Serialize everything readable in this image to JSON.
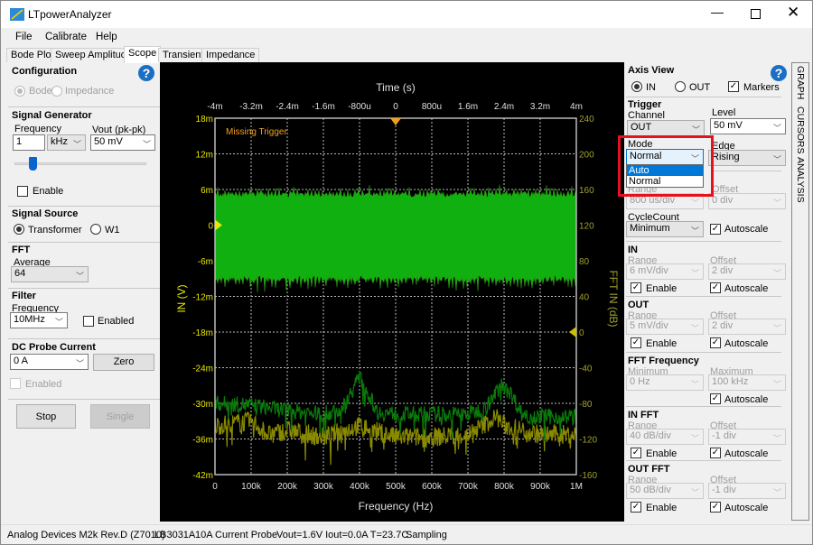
{
  "window": {
    "title": "LTpowerAnalyzer"
  },
  "menu": [
    "File",
    "Calibrate",
    "Help"
  ],
  "tabs": [
    "Bode Plot",
    "Sweep Amplitude",
    "Scope",
    "Transient",
    "Impedance"
  ],
  "left": {
    "configuration": {
      "title": "Configuration",
      "bode": "Bode",
      "impedance": "Impedance"
    },
    "signal_generator": {
      "title": "Signal Generator",
      "frequency_label": "Frequency",
      "frequency_value": "1",
      "unit": "kHz",
      "vout_label": "Vout (pk-pk)",
      "vout_value": "50 mV",
      "slider_fraction": 0.15,
      "enable": "Enable"
    },
    "signal_source": {
      "title": "Signal Source",
      "transformer": "Transformer",
      "w1": "W1"
    },
    "fft": {
      "title": "FFT",
      "average_label": "Average",
      "average_value": "64"
    },
    "filter": {
      "title": "Filter",
      "frequency_label": "Frequency",
      "frequency_value": "10MHz",
      "enabled": "Enabled"
    },
    "dc_probe": {
      "title": "DC Probe Current",
      "value": "0 A",
      "zero": "Zero",
      "enabled": "Enabled"
    },
    "stop": "Stop",
    "single": "Single"
  },
  "right": {
    "axis_view": {
      "title": "Axis View",
      "in": "IN",
      "out": "OUT",
      "markers": "Markers"
    },
    "trigger": {
      "title": "Trigger",
      "channel_label": "Channel",
      "channel_value": "OUT",
      "level_label": "Level",
      "level_value": "50 mV",
      "mode_label": "Mode",
      "mode_value": "Normal",
      "mode_options": [
        "Auto",
        "Normal"
      ],
      "edge_label": "Edge",
      "edge_value": "Rising"
    },
    "time": {
      "range_label": "Range",
      "range_value": "800 us/div",
      "offset_label": "Offset",
      "offset_value": "0 div",
      "cycle_label": "CycleCount",
      "cycle_value": "Minimum",
      "autoscale": "Autoscale"
    },
    "in": {
      "title": "IN",
      "range_label": "Range",
      "range_value": "6 mV/div",
      "offset_label": "Offset",
      "offset_value": "2 div",
      "enable": "Enable",
      "autoscale": "Autoscale"
    },
    "out": {
      "title": "OUT",
      "range_label": "Range",
      "range_value": "5 mV/div",
      "offset_label": "Offset",
      "offset_value": "2 div",
      "enable": "Enable",
      "autoscale": "Autoscale"
    },
    "fft_freq": {
      "title": "FFT Frequency",
      "min_label": "Minimum",
      "min_value": "0 Hz",
      "max_label": "Maximum",
      "max_value": "100 kHz",
      "autoscale": "Autoscale"
    },
    "in_fft": {
      "title": "IN FFT",
      "range_label": "Range",
      "range_value": "40 dB/div",
      "offset_label": "Offset",
      "offset_value": "-1 div",
      "enable": "Enable",
      "autoscale": "Autoscale"
    },
    "out_fft": {
      "title": "OUT FFT",
      "range_label": "Range",
      "range_value": "50 dB/div",
      "offset_label": "Offset",
      "offset_value": "-1 div",
      "enable": "Enable",
      "autoscale": "Autoscale"
    },
    "side_tabs": [
      "GRAPH",
      "CURSORS",
      "ANALYSIS"
    ]
  },
  "status": {
    "device": "Analog Devices M2k Rev.D (Z7010)",
    "board": "LB3031A",
    "probe": "10A Current Probe",
    "readings": "Vout=1.6V Iout=0.0A T=23.7C",
    "state": "Sampling"
  },
  "chart_data": {
    "type": "line",
    "top_xlabel": "Time (s)",
    "top_xticks": [
      "-4m",
      "-3.2m",
      "-2.4m",
      "-1.6m",
      "-800u",
      "0",
      "800u",
      "1.6m",
      "2.4m",
      "3.2m",
      "4m"
    ],
    "top_xlim": [
      -0.004,
      0.004
    ],
    "bottom_xlabel": "Frequency (Hz)",
    "bottom_xticks": [
      "0",
      "100k",
      "200k",
      "300k",
      "400k",
      "500k",
      "600k",
      "700k",
      "800k",
      "900k",
      "1M"
    ],
    "bottom_xlim": [
      0,
      1000000
    ],
    "ylabel": "IN (V)",
    "yticks": [
      "18m",
      "12m",
      "6m",
      "0",
      "-6m",
      "-12m",
      "-18m",
      "-24m",
      "-30m",
      "-36m",
      "-42m"
    ],
    "ylim": [
      -0.042,
      0.018
    ],
    "y2label": "FFT IN (dB)",
    "y2ticks": [
      "240",
      "200",
      "160",
      "120",
      "80",
      "40",
      "0",
      "-40",
      "-80",
      "-120",
      "-160"
    ],
    "y2lim": [
      -160,
      240
    ],
    "annotation": "Missing Trigger",
    "grid": true,
    "colors": {
      "time": "#10b010",
      "in_fft": "#0a7a0a",
      "out_fft": "#8a8a00",
      "left_axis": "#e8e800",
      "right_axis": "#a0a030",
      "trigger_marker": "#f0a020"
    },
    "time_trace": {
      "upper_v": 0.0055,
      "lower_v": -0.0095,
      "spike_max_v": 0.007,
      "spike_min_v": -0.0115
    },
    "in_fft": {
      "freq_hz": [
        0,
        100000,
        200000,
        300000,
        350000,
        400000,
        450000,
        500000,
        600000,
        700000,
        750000,
        800000,
        850000,
        900000,
        1000000
      ],
      "db": [
        -80,
        -82,
        -88,
        -92,
        -88,
        -50,
        -90,
        -92,
        -92,
        -92,
        -85,
        -55,
        -92,
        -95,
        -95
      ]
    },
    "out_fft": {
      "freq_hz": [
        0,
        100000,
        150000,
        200000,
        300000,
        400000,
        500000,
        600000,
        700000,
        780000,
        800000,
        900000,
        1000000
      ],
      "db": [
        -105,
        -100,
        -115,
        -110,
        -118,
        -105,
        -118,
        -118,
        -115,
        -95,
        -105,
        -115,
        -115
      ]
    }
  }
}
